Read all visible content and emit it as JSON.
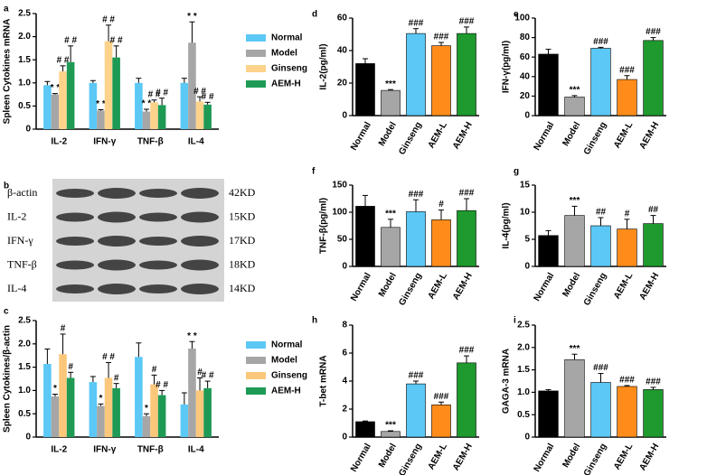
{
  "chart_data": [
    {
      "type": "grouped_bar",
      "panel": "a",
      "ylabel": "Spleen Cytokines mRNA",
      "categories": [
        "IL-2",
        "IFN-γ",
        "TNF-β",
        "IL-4"
      ],
      "ylim": [
        0,
        2.5
      ],
      "yticks": [
        0,
        0.5,
        {
          "value": 1,
          "label": "1.0"
        },
        1.5,
        {
          "value": 2,
          "label": "2.0"
        },
        2.5
      ],
      "legend": "right",
      "series": [
        {
          "name": "Normal",
          "color": "#5bc8f5",
          "values": [
            0.95,
            1.0,
            1.0,
            1.0
          ],
          "errors": [
            0.08,
            0.05,
            0.1,
            0.1
          ],
          "annotations": [
            null,
            null,
            null,
            null
          ]
        },
        {
          "name": "Model",
          "color": "#a6a6a6",
          "values": [
            0.75,
            0.4,
            0.38,
            1.87
          ],
          "errors": [
            0.02,
            0.02,
            0.05,
            0.45
          ],
          "annotations": [
            "* *",
            "* *",
            "* *",
            "* *"
          ]
        },
        {
          "name": "Ginseng",
          "color": "#fdd38b",
          "values": [
            1.25,
            1.9,
            0.58,
            0.6
          ],
          "errors": [
            0.12,
            0.35,
            0.05,
            0.1
          ],
          "annotations": [
            "# #",
            "# #",
            "# #",
            "# #"
          ]
        },
        {
          "name": "AEM-H",
          "color": "#1e9a55",
          "values": [
            1.45,
            1.55,
            0.52,
            0.53
          ],
          "errors": [
            0.35,
            0.25,
            0.15,
            0.05
          ],
          "annotations": [
            "# #",
            "# #",
            "# #",
            "# #"
          ]
        }
      ]
    },
    {
      "type": "blot",
      "panel": "b",
      "rows": [
        {
          "label": "β-actin",
          "size": "42KD"
        },
        {
          "label": "IL-2",
          "size": "15KD"
        },
        {
          "label": "IFN-γ",
          "size": "17KD"
        },
        {
          "label": "TNF-β",
          "size": "18KD"
        },
        {
          "label": "IL-4",
          "size": "14KD"
        }
      ]
    },
    {
      "type": "grouped_bar",
      "panel": "c",
      "ylabel": "Spleen Cytokines/β-actin",
      "categories": [
        "IL-2",
        "IFN-γ",
        "TNF-β",
        "IL-4"
      ],
      "ylim": [
        0,
        2.5
      ],
      "yticks": [
        0,
        0.5,
        {
          "value": 1,
          "label": "1.0"
        },
        1.5,
        {
          "value": 2,
          "label": "2.0"
        },
        2.5
      ],
      "legend": "right",
      "series": [
        {
          "name": "Normal",
          "color": "#5bc8f5",
          "values": [
            1.57,
            1.18,
            1.72,
            0.7
          ],
          "errors": [
            0.32,
            0.12,
            0.3,
            0.25
          ],
          "annotations": [
            null,
            null,
            null,
            null
          ]
        },
        {
          "name": "Model",
          "color": "#a6a6a6",
          "values": [
            0.87,
            0.67,
            0.45,
            1.9
          ],
          "errors": [
            0.05,
            0.04,
            0.05,
            0.15
          ],
          "annotations": [
            "*",
            "*",
            "*",
            "* *"
          ]
        },
        {
          "name": "Ginseng",
          "color": "#fbc77a",
          "values": [
            1.78,
            1.27,
            1.13,
            1.0
          ],
          "errors": [
            0.43,
            0.33,
            0.2,
            0.27
          ],
          "annotations": [
            "#",
            "# #",
            "#",
            "#"
          ]
        },
        {
          "name": "AEM-H",
          "color": "#1e9a55",
          "values": [
            1.27,
            1.05,
            0.9,
            1.05
          ],
          "errors": [
            0.12,
            0.1,
            0.1,
            0.15
          ],
          "annotations": [
            "#",
            "#",
            "# #",
            "# #"
          ]
        }
      ]
    },
    {
      "type": "bar",
      "panel": "d",
      "ylabel": "IL-2(pg/ml)",
      "categories": [
        "Normal",
        "Model",
        "Ginseng",
        "AEM-L",
        "AEM-H"
      ],
      "colors": [
        "#000000",
        "#a6a6a6",
        "#5bc8f5",
        "#ff8c1a",
        "#1e9a2e"
      ],
      "values": [
        32,
        15.5,
        50.5,
        43,
        50.5
      ],
      "errors": [
        3,
        0.5,
        3,
        2,
        4
      ],
      "annotations": [
        null,
        "***",
        "###",
        "###",
        "###"
      ],
      "ylim": [
        0,
        60
      ],
      "yticks": [
        0,
        20,
        40,
        60
      ]
    },
    {
      "type": "bar",
      "panel": "e",
      "ylabel": "IFN-γ(pg/ml)",
      "categories": [
        "Normal",
        "Model",
        "Ginseng",
        "AEM-L",
        "AEM-H"
      ],
      "colors": [
        "#000000",
        "#a6a6a6",
        "#5bc8f5",
        "#ff8c1a",
        "#1e9a2e"
      ],
      "values": [
        63,
        19,
        69,
        37,
        77
      ],
      "errors": [
        5,
        1.5,
        1,
        4,
        3
      ],
      "annotations": [
        null,
        "***",
        "###",
        "###",
        "###"
      ],
      "ylim": [
        0,
        100
      ],
      "yticks": [
        0,
        20,
        40,
        60,
        80,
        100
      ]
    },
    {
      "type": "bar",
      "panel": "f",
      "ylabel": "TNF-β(pg/ml)",
      "categories": [
        "Normal",
        "Model",
        "Ginseng",
        "AEM-L",
        "AEM-H"
      ],
      "colors": [
        "#000000",
        "#a6a6a6",
        "#5bc8f5",
        "#ff8c1a",
        "#1e9a2e"
      ],
      "values": [
        111,
        72,
        101,
        86,
        103
      ],
      "errors": [
        20,
        15,
        22,
        18,
        22
      ],
      "annotations": [
        null,
        "***",
        "###",
        "#",
        "###"
      ],
      "ylim": [
        0,
        150
      ],
      "yticks": [
        0,
        50,
        100,
        150
      ]
    },
    {
      "type": "bar",
      "panel": "g",
      "ylabel": "IL-4(pg/ml)",
      "categories": [
        "Normal",
        "Model",
        "Ginseng",
        "AEM-L",
        "AEM-H"
      ],
      "colors": [
        "#000000",
        "#a6a6a6",
        "#5bc8f5",
        "#ff8c1a",
        "#1e9a2e"
      ],
      "values": [
        5.7,
        9.4,
        7.5,
        6.9,
        7.9
      ],
      "errors": [
        0.9,
        1.7,
        1.5,
        1.8,
        1.5
      ],
      "annotations": [
        null,
        "***",
        "##",
        "#",
        "##"
      ],
      "ylim": [
        0,
        15
      ],
      "yticks": [
        0,
        5,
        10,
        15
      ]
    },
    {
      "type": "bar",
      "panel": "h",
      "ylabel": "T-bet mRNA",
      "categories": [
        "Normal",
        "Model",
        "Ginseng",
        "AEM-L",
        "AEM-H"
      ],
      "colors": [
        "#000000",
        "#a6a6a6",
        "#5bc8f5",
        "#ff8c1a",
        "#1e9a2e"
      ],
      "values": [
        1.1,
        0.4,
        3.8,
        2.3,
        5.3
      ],
      "errors": [
        0.05,
        0.05,
        0.2,
        0.2,
        0.5
      ],
      "annotations": [
        null,
        "***",
        "###",
        "###",
        "###"
      ],
      "ylim": [
        0,
        8
      ],
      "yticks": [
        0,
        2,
        4,
        6,
        8
      ]
    },
    {
      "type": "bar",
      "panel": "i",
      "ylabel": "GAGA-3 mRNA",
      "categories": [
        "Normal",
        "Model",
        "Ginseng",
        "AEM-L",
        "AEM-H"
      ],
      "colors": [
        "#000000",
        "#a6a6a6",
        "#5bc8f5",
        "#ff8c1a",
        "#1e9a2e"
      ],
      "values": [
        1.03,
        1.73,
        1.22,
        1.13,
        1.06
      ],
      "errors": [
        0.03,
        0.12,
        0.2,
        0.02,
        0.05
      ],
      "annotations": [
        null,
        "***",
        "###",
        "###",
        "###"
      ],
      "ylim": [
        0,
        2.5
      ],
      "yticks": [
        0,
        0.5,
        {
          "value": 1,
          "label": "1.0"
        },
        1.5,
        {
          "value": 2,
          "label": "2.0"
        },
        2.5
      ]
    }
  ]
}
